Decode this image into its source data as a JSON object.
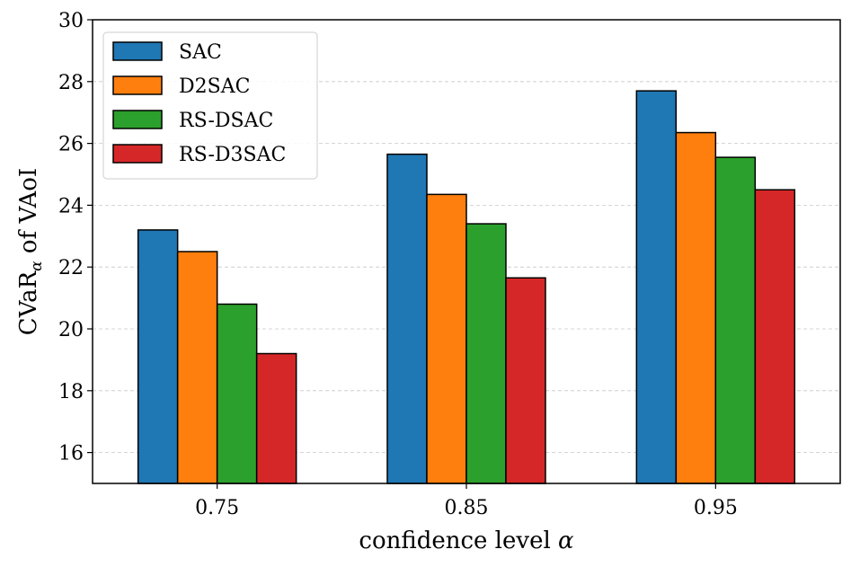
{
  "chart_data": {
    "type": "bar",
    "categories": [
      "0.75",
      "0.85",
      "0.95"
    ],
    "series": [
      {
        "name": "SAC",
        "color": "#1f77b4",
        "values": [
          23.2,
          25.65,
          27.7
        ]
      },
      {
        "name": "D2SAC",
        "color": "#ff7f0e",
        "values": [
          22.5,
          24.35,
          26.35
        ]
      },
      {
        "name": "RS-DSAC",
        "color": "#2ca02c",
        "values": [
          20.8,
          23.4,
          25.55
        ]
      },
      {
        "name": "RS-D3SAC",
        "color": "#d62728",
        "values": [
          19.2,
          21.65,
          24.5
        ]
      }
    ],
    "xlabel_main": "confidence level ",
    "xlabel_symbol": "α",
    "ylabel_main": "CVaR",
    "ylabel_sub": "α",
    "ylabel_rest": " of VAoI",
    "ylim": [
      15,
      30
    ],
    "yticks": [
      "16",
      "18",
      "20",
      "22",
      "24",
      "26",
      "28",
      "30"
    ],
    "grid": "y-dashed",
    "legend_position": "top-left"
  }
}
